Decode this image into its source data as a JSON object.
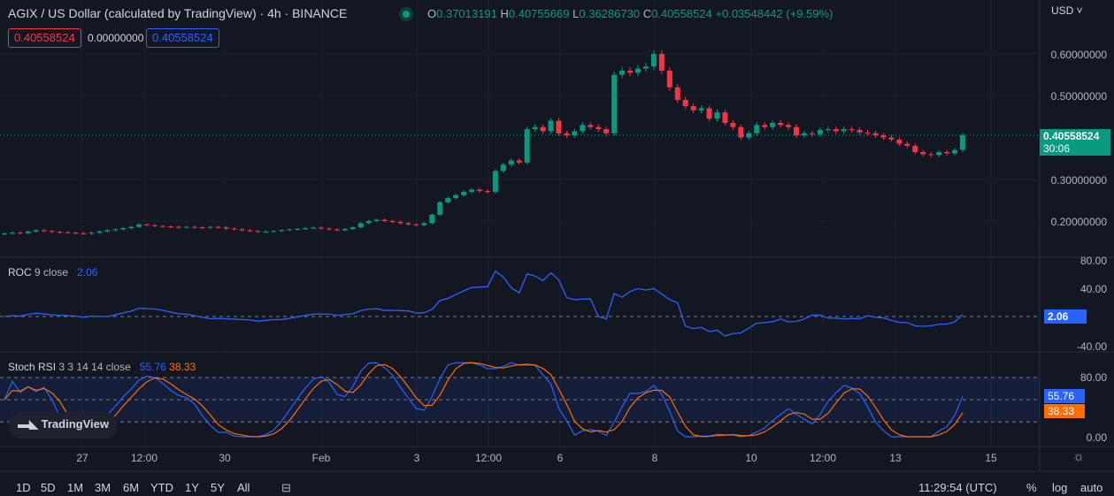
{
  "header": {
    "title": "AGIX / US Dollar (calculated by TradingView) · 4h · BINANCE",
    "o_label": "O",
    "o": "0.37013191",
    "h_label": "H",
    "h": "0.40755669",
    "l_label": "L",
    "l": "0.36286730",
    "c_label": "C",
    "c": "0.40558524",
    "change": "+0.03548442 (+9.59%)",
    "bid": "0.40558524",
    "spread": "0.00000000",
    "ask": "0.40558524"
  },
  "price_axis": {
    "currency": "USD",
    "ticks": [
      "0.60000000",
      "0.50000000",
      "0.30000000",
      "0.20000000"
    ],
    "last_price": "0.40558524",
    "countdown": "30:06"
  },
  "roc": {
    "name": "ROC",
    "params": "9 close",
    "value": "2.06",
    "ticks": [
      "80.00",
      "40.00",
      "-40.00"
    ]
  },
  "stoch": {
    "name": "Stoch RSI",
    "params": "3 3 14 14 close",
    "k": "55.76",
    "d": "38.33",
    "ticks": [
      "80.00",
      "0.00"
    ]
  },
  "time_axis": [
    "27",
    "12:00",
    "30",
    "Feb",
    "3",
    "12:00",
    "6",
    "8",
    "10",
    "12:00",
    "13",
    "15"
  ],
  "toolbar": {
    "ranges": [
      "1D",
      "5D",
      "1M",
      "3M",
      "6M",
      "YTD",
      "1Y",
      "5Y",
      "All"
    ],
    "clock": "11:29:54 (UTC)",
    "percent": "%",
    "log": "log",
    "auto": "auto"
  },
  "watermark": "TradingView",
  "colors": {
    "up": "#089981",
    "down": "#f23645",
    "roc": "#2962ff",
    "k": "#2962ff",
    "d": "#ff6d00",
    "bg": "#131722"
  },
  "chart_data": {
    "type": "candlestick",
    "timeframe": "4h",
    "ylim": [
      0.13,
      0.67
    ],
    "close": [
      0.17,
      0.172,
      0.171,
      0.175,
      0.178,
      0.176,
      0.174,
      0.173,
      0.172,
      0.171,
      0.17,
      0.172,
      0.175,
      0.178,
      0.18,
      0.183,
      0.186,
      0.192,
      0.19,
      0.188,
      0.187,
      0.186,
      0.185,
      0.186,
      0.185,
      0.184,
      0.186,
      0.185,
      0.182,
      0.18,
      0.178,
      0.176,
      0.174,
      0.175,
      0.176,
      0.178,
      0.18,
      0.181,
      0.183,
      0.184,
      0.182,
      0.18,
      0.178,
      0.181,
      0.185,
      0.195,
      0.2,
      0.203,
      0.2,
      0.198,
      0.195,
      0.192,
      0.19,
      0.195,
      0.215,
      0.245,
      0.255,
      0.262,
      0.27,
      0.275,
      0.272,
      0.27,
      0.32,
      0.335,
      0.345,
      0.34,
      0.42,
      0.425,
      0.415,
      0.44,
      0.41,
      0.405,
      0.415,
      0.43,
      0.425,
      0.42,
      0.41,
      0.55,
      0.56,
      0.555,
      0.565,
      0.57,
      0.6,
      0.56,
      0.52,
      0.49,
      0.475,
      0.465,
      0.47,
      0.445,
      0.46,
      0.435,
      0.425,
      0.4,
      0.41,
      0.43,
      0.425,
      0.435,
      0.43,
      0.425,
      0.405,
      0.41,
      0.408,
      0.418,
      0.42,
      0.415,
      0.42,
      0.418,
      0.412,
      0.41,
      0.405,
      0.4,
      0.395,
      0.385,
      0.38,
      0.365,
      0.36,
      0.358,
      0.365,
      0.362,
      0.37,
      0.4056
    ]
  }
}
